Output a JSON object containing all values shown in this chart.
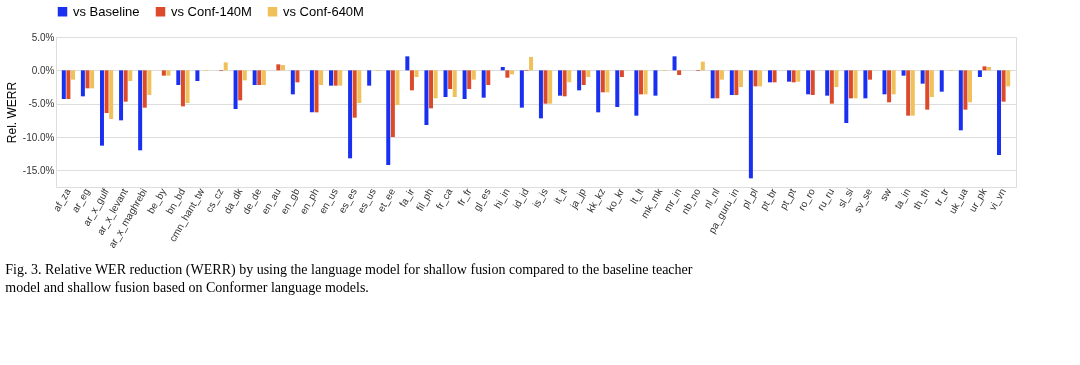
{
  "chart_data": {
    "type": "bar",
    "ylabel": "Rel. WERR",
    "categories": [
      "af_za",
      "ar_eg",
      "ar_x_gulf",
      "ar_x_levant",
      "ar_x_maghrebi",
      "be_by",
      "bn_bd",
      "cmn_hant_tw",
      "cs_cz",
      "da_dk",
      "de_de",
      "en_au",
      "en_gb",
      "en_ph",
      "en_us",
      "es_es",
      "es_us",
      "et_ee",
      "fa_ir",
      "fil_ph",
      "fr_ca",
      "fr_fr",
      "gl_es",
      "hi_in",
      "id_id",
      "is_is",
      "it_it",
      "ja_jp",
      "kk_kz",
      "ko_kr",
      "lt_lt",
      "mk_mk",
      "mr_in",
      "nb_no",
      "nl_nl",
      "pa_guru_in",
      "pl_pl",
      "pt_br",
      "pt_pt",
      "ro_ro",
      "ru_ru",
      "sl_si",
      "sv_se",
      "sw",
      "ta_in",
      "th_th",
      "tr_tr",
      "uk_ua",
      "ur_pk",
      "vi_vn"
    ],
    "series": [
      {
        "name": "vs Baseline",
        "color": "#1a30f0",
        "values": [
          -4.3,
          -3.9,
          -11.3,
          -7.5,
          -12.0,
          0,
          -2.2,
          -1.6,
          0,
          -5.8,
          -2.2,
          0,
          -3.6,
          -6.3,
          -2.3,
          -13.2,
          -2.3,
          -14.2,
          2.1,
          -8.2,
          -4.0,
          -4.3,
          -4.1,
          0.5,
          -5.6,
          -7.2,
          -3.8,
          -3.0,
          -6.3,
          -5.5,
          -6.8,
          -3.8,
          2.1,
          0,
          -4.2,
          -3.7,
          -16.2,
          -1.8,
          -1.7,
          -3.6,
          -3.8,
          -7.9,
          -4.2,
          -3.6,
          -0.8,
          -2.0,
          -3.2,
          -9.0,
          -1.0,
          -12.7
        ]
      },
      {
        "name": "vs Conf-140M",
        "color": "#db4a2b",
        "values": [
          -4.3,
          -2.7,
          -6.4,
          -4.7,
          -5.6,
          -0.8,
          -5.4,
          0,
          -0.1,
          -4.5,
          -2.2,
          0.9,
          -1.8,
          -6.3,
          -2.3,
          -7.1,
          0,
          -10.0,
          -3.0,
          -5.7,
          -2.8,
          -2.8,
          -2.2,
          -1.1,
          -0.1,
          -5.0,
          -3.9,
          -2.2,
          -3.3,
          -1.0,
          -3.6,
          0,
          -0.7,
          -0.1,
          -4.2,
          -3.7,
          -2.4,
          -1.8,
          -1.8,
          -3.7,
          -5.0,
          -4.2,
          -1.4,
          -4.8,
          -6.8,
          -5.9,
          0,
          -5.9,
          0.6,
          -4.7
        ]
      },
      {
        "name": "vs Conf-640M",
        "color": "#f0c05a",
        "values": [
          -1.4,
          -2.7,
          -7.3,
          -1.6,
          -3.7,
          -0.8,
          -4.9,
          -0.1,
          1.2,
          -1.5,
          -2.2,
          0.8,
          0,
          -2.2,
          -2.3,
          -4.9,
          -0.1,
          -5.2,
          -1.0,
          -4.2,
          -4.0,
          -1.4,
          0,
          -0.6,
          2.0,
          -5.0,
          -1.8,
          -1.0,
          -3.3,
          0,
          -3.6,
          -0.1,
          0,
          1.3,
          -1.4,
          -2.5,
          -2.4,
          0,
          -1.7,
          0,
          -2.5,
          -4.2,
          0,
          -3.6,
          -6.8,
          -4.0,
          -0.1,
          -4.8,
          0.5,
          -2.4
        ]
      }
    ],
    "ylim": [
      -17.5,
      5
    ],
    "yticks": [
      {
        "value": 5,
        "label": "5.0%"
      },
      {
        "value": 0,
        "label": "0.0%"
      },
      {
        "value": -5,
        "label": "-5.0%"
      },
      {
        "value": -10,
        "label": "-10.0%"
      },
      {
        "value": -15,
        "label": "-15.0%"
      }
    ],
    "grid": "y",
    "legend": "top",
    "annotations": [
      "Fig. 3. Relative WER reduction (WERR) by using the language model for shallow fusion compared to the baseline teacher model and shallow fusion based on Conformer language models."
    ]
  }
}
